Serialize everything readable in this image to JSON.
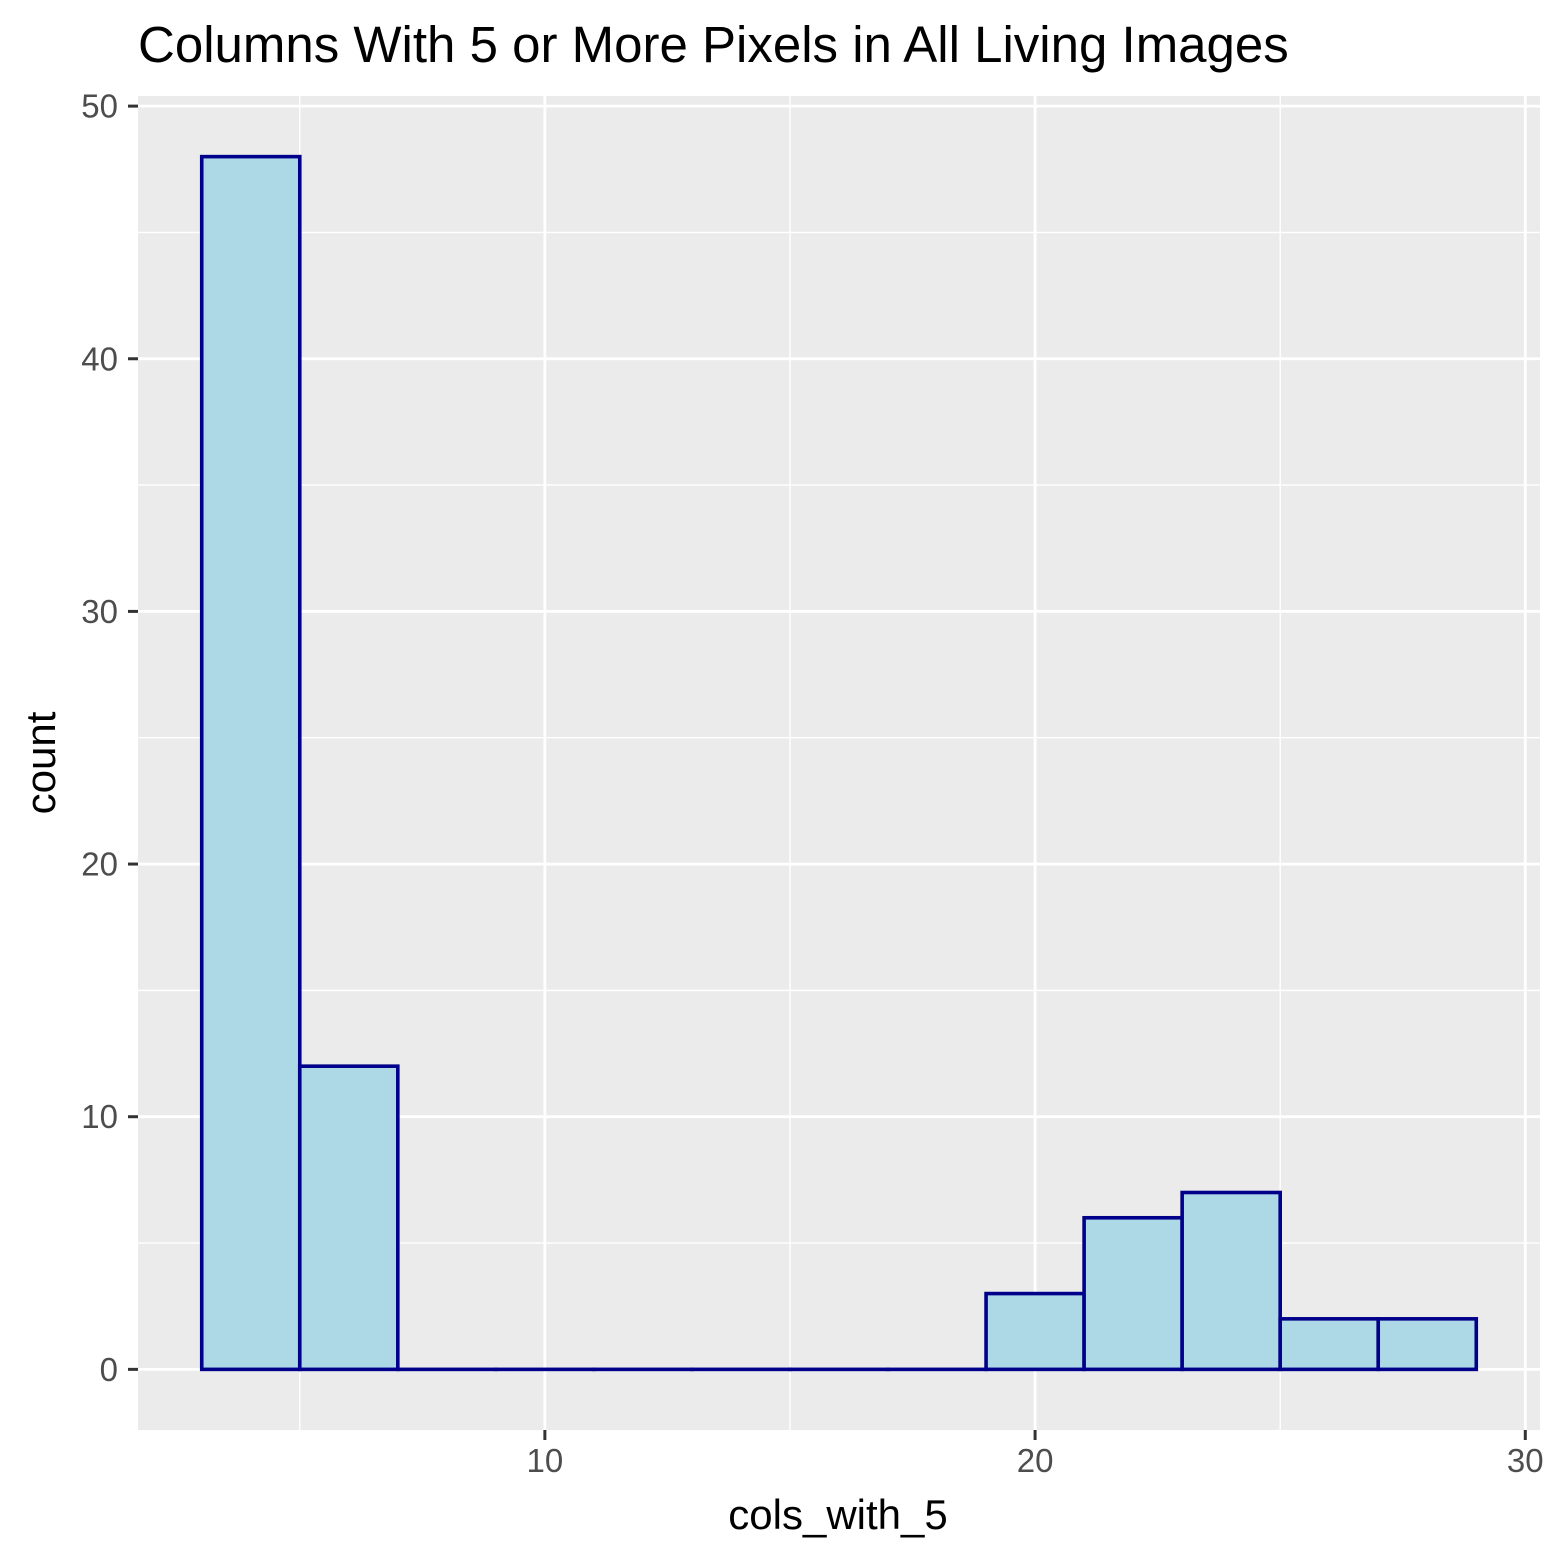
{
  "chart_data": {
    "type": "bar",
    "title": "Columns With 5 or More Pixels in All Living Images",
    "xlabel": "cols_with_5",
    "ylabel": "count",
    "bin_width": 2,
    "bins": [
      {
        "x_start": 3,
        "x_end": 5,
        "count": 48
      },
      {
        "x_start": 5,
        "x_end": 7,
        "count": 12
      },
      {
        "x_start": 7,
        "x_end": 9,
        "count": 0
      },
      {
        "x_start": 9,
        "x_end": 11,
        "count": 0
      },
      {
        "x_start": 11,
        "x_end": 13,
        "count": 0
      },
      {
        "x_start": 13,
        "x_end": 15,
        "count": 0
      },
      {
        "x_start": 15,
        "x_end": 17,
        "count": 0
      },
      {
        "x_start": 17,
        "x_end": 19,
        "count": 0
      },
      {
        "x_start": 19,
        "x_end": 21,
        "count": 3
      },
      {
        "x_start": 21,
        "x_end": 23,
        "count": 6
      },
      {
        "x_start": 23,
        "x_end": 25,
        "count": 7
      },
      {
        "x_start": 25,
        "x_end": 27,
        "count": 2
      },
      {
        "x_start": 27,
        "x_end": 29,
        "count": 2
      }
    ],
    "xlim": [
      1.7,
      30.3
    ],
    "ylim": [
      -2.4,
      50.4
    ],
    "x_ticks": [
      10,
      20,
      30
    ],
    "y_ticks": [
      0,
      10,
      20,
      30,
      40,
      50
    ],
    "x_minor_ticks": [
      5,
      15,
      25
    ],
    "y_minor_ticks": [
      5,
      15,
      25,
      35,
      45
    ],
    "grid": true,
    "colors": {
      "panel_background": "#ebebeb",
      "grid_line": "#ffffff",
      "bar_fill": "#add8e6",
      "bar_outline": "#00008b",
      "tick_mark": "#333333",
      "tick_text": "#4d4d4d",
      "text": "#000000"
    }
  }
}
